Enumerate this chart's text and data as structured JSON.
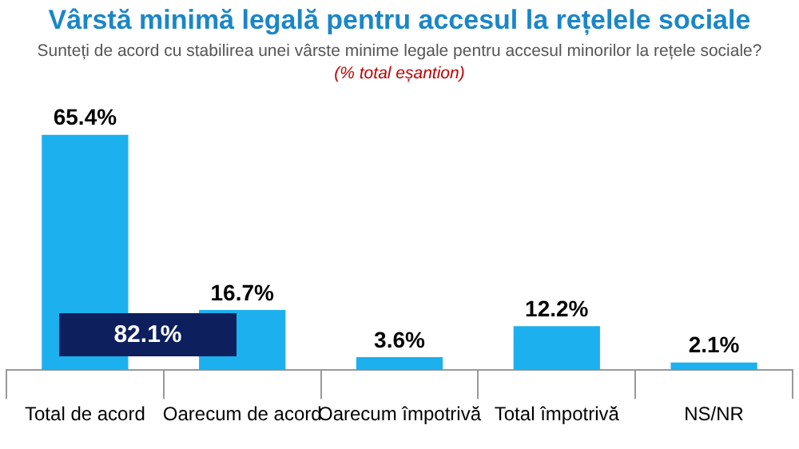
{
  "chart_data": {
    "type": "bar",
    "title": "Vârstă minimă legală pentru accesul la rețelele sociale",
    "subtitle": "Sunteți de acord cu stabilirea unei vârste minime legale pentru accesul minorilor la rețele sociale?",
    "annotations": [
      "(% total eșantion)",
      "82.1%"
    ],
    "categories": [
      "Total de acord",
      "Oarecum de acord",
      "Oarecum împotrivă",
      "Total împotrivă",
      "NS/NR"
    ],
    "values": [
      65.4,
      16.7,
      3.6,
      12.2,
      2.1
    ],
    "value_labels": [
      "65.4%",
      "16.7%",
      "3.6%",
      "12.2%",
      "2.1%"
    ],
    "color": "#1cb0ef",
    "grid": false,
    "legend": false
  }
}
